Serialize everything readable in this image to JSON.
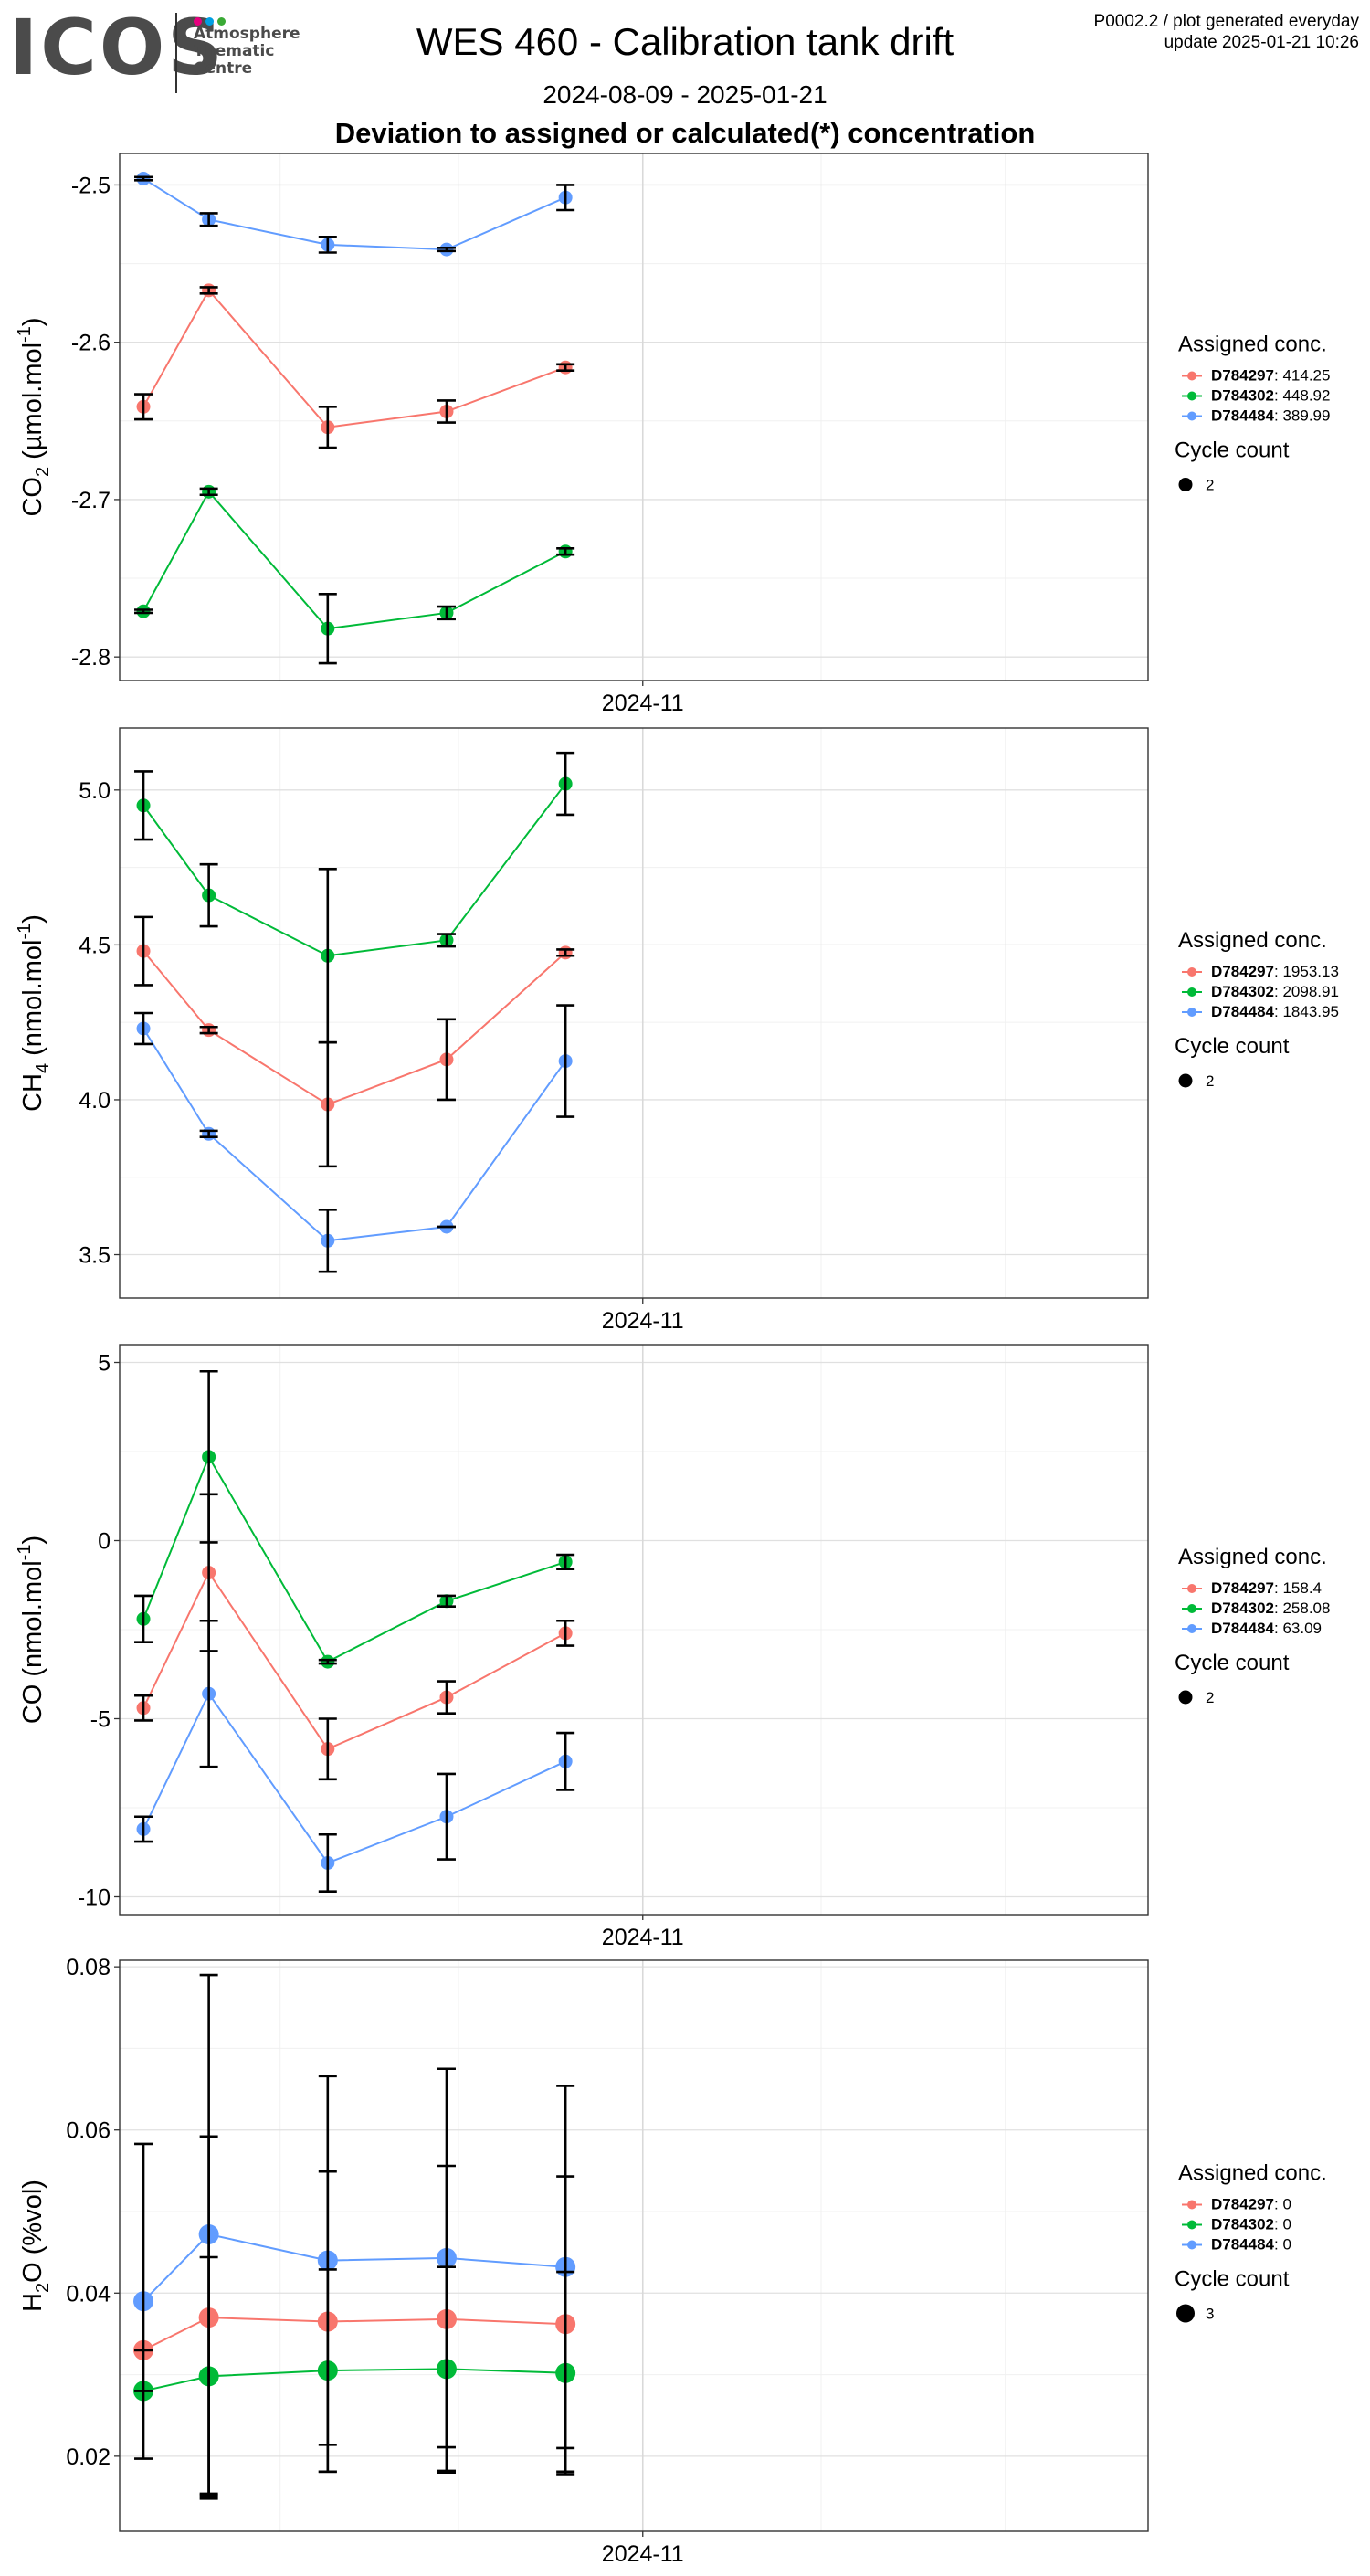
{
  "header": {
    "logo": "ICOS",
    "logo_sub": [
      "Atmosphere",
      "Thematic",
      "Centre"
    ],
    "title": "WES 460 - Calibration tank drift",
    "date_range": "2024-08-09 - 2025-01-21",
    "subtitle": "Deviation to assigned or calculated(*) concentration",
    "note_line1": "P0002.2 / plot generated everyday",
    "note_line2": "update  2025-01-21 10:26"
  },
  "colors": {
    "D784297": "#F8766D",
    "D784302": "#00BA38",
    "D784484": "#619CFF",
    "logo_dots": [
      "#e6007e",
      "#009fe3",
      "#3aaa35"
    ]
  },
  "chart_data": [
    {
      "type": "line",
      "ylabel": "CO2 (µmol.mol-1)",
      "ylabel_parts": {
        "base": "CO",
        "sub": "2",
        "rest": " (µmol.mol",
        "sup": "-1",
        "end": ")"
      },
      "x_tick_label": "2024-11",
      "yticks": [
        -2.5,
        -2.6,
        -2.7,
        -2.8
      ],
      "ytick_labels": [
        "-2.5",
        "-2.6",
        "-2.7",
        "-2.8"
      ],
      "ylim": [
        -2.815,
        -2.48
      ],
      "x": [
        "2024-08-09",
        "2024-08-20",
        "2024-09-09",
        "2024-09-29",
        "2024-10-19"
      ],
      "legend_title": "Assigned conc.",
      "cycle_title": "Cycle count",
      "cycle_label": "2",
      "series": [
        {
          "id": "D784297",
          "name": "D784297",
          "assigned": ": 414.25",
          "values": [
            -2.641,
            -2.567,
            -2.654,
            -2.644,
            -2.616
          ],
          "err": [
            0.008,
            0.002,
            0.013,
            0.007,
            0.002
          ]
        },
        {
          "id": "D784302",
          "name": "D784302",
          "assigned": ": 448.92",
          "values": [
            -2.771,
            -2.695,
            -2.782,
            -2.772,
            -2.733
          ],
          "err": [
            0.001,
            0.002,
            0.022,
            0.004,
            0.002
          ]
        },
        {
          "id": "D784484",
          "name": "D784484",
          "assigned": ": 389.99",
          "values": [
            -2.496,
            -2.522,
            -2.538,
            -2.541,
            -2.508
          ],
          "err": [
            0.001,
            0.004,
            0.005,
            0.001,
            0.008
          ]
        }
      ]
    },
    {
      "type": "line",
      "ylabel": "CH4 (nmol.mol-1)",
      "ylabel_parts": {
        "base": "CH",
        "sub": "4",
        "rest": " (nmol.mol",
        "sup": "-1",
        "end": ")"
      },
      "x_tick_label": "2024-11",
      "yticks": [
        5.0,
        4.5,
        4.0,
        3.5
      ],
      "ytick_labels": [
        "5.0",
        "4.5",
        "4.0",
        "3.5"
      ],
      "ylim": [
        3.36,
        5.2
      ],
      "x": [
        "2024-08-09",
        "2024-08-20",
        "2024-09-09",
        "2024-09-29",
        "2024-10-19"
      ],
      "legend_title": "Assigned conc.",
      "cycle_title": "Cycle count",
      "cycle_label": "2",
      "series": [
        {
          "id": "D784297",
          "name": "D784297",
          "assigned": ": 1953.13",
          "values": [
            4.48,
            4.225,
            3.985,
            4.13,
            4.475
          ],
          "err": [
            0.11,
            0.01,
            0.2,
            0.13,
            0.01
          ]
        },
        {
          "id": "D784302",
          "name": "D784302",
          "assigned": ": 2098.91",
          "values": [
            4.95,
            4.66,
            4.465,
            4.515,
            5.02
          ],
          "err": [
            0.11,
            0.1,
            0.28,
            0.02,
            0.1
          ]
        },
        {
          "id": "D784484",
          "name": "D784484",
          "assigned": ": 1843.95",
          "values": [
            4.23,
            3.89,
            3.545,
            3.59,
            4.125
          ],
          "err": [
            0.05,
            0.01,
            0.1,
            0.0,
            0.18
          ]
        }
      ]
    },
    {
      "type": "line",
      "ylabel": "CO (nmol.mol-1)",
      "ylabel_parts": {
        "base": "CO",
        "sub": "",
        "rest": " (nmol.mol",
        "sup": "-1",
        "end": ")"
      },
      "x_tick_label": "2024-11",
      "yticks": [
        5,
        0,
        -5,
        -10
      ],
      "ytick_labels": [
        "5",
        "0",
        "-5",
        "-10"
      ],
      "ylim": [
        -10.5,
        5.5
      ],
      "x": [
        "2024-08-09",
        "2024-08-20",
        "2024-09-09",
        "2024-09-29",
        "2024-10-19"
      ],
      "legend_title": "Assigned conc.",
      "cycle_title": "Cycle count",
      "cycle_label": "2",
      "series": [
        {
          "id": "D784297",
          "name": "D784297",
          "assigned": ": 158.4",
          "values": [
            -4.7,
            -0.9,
            -5.85,
            -4.4,
            -2.6
          ],
          "err": [
            0.35,
            2.2,
            0.85,
            0.45,
            0.35
          ]
        },
        {
          "id": "D784302",
          "name": "D784302",
          "assigned": ": 258.08",
          "values": [
            -2.2,
            2.35,
            -3.4,
            -1.7,
            -0.6
          ],
          "err": [
            0.65,
            2.4,
            0.05,
            0.15,
            0.2
          ]
        },
        {
          "id": "D784484",
          "name": "D784484",
          "assigned": ": 63.09",
          "values": [
            -8.1,
            -4.3,
            -9.05,
            -7.75,
            -6.2
          ],
          "err": [
            0.35,
            2.05,
            0.8,
            1.2,
            0.8
          ]
        }
      ]
    },
    {
      "type": "line",
      "ylabel": "H2O (%vol)",
      "ylabel_parts": {
        "base": "H",
        "sub": "2",
        "rest": "O (%vol)",
        "sup": "",
        "end": ""
      },
      "x_tick_label": "2024-11",
      "yticks": [
        0.08,
        0.06,
        0.04,
        0.02
      ],
      "ytick_labels": [
        "0.08",
        "0.06",
        "0.04",
        "0.02"
      ],
      "ylim": [
        0.0108,
        0.0808
      ],
      "x": [
        "2024-08-09",
        "2024-08-20",
        "2024-09-09",
        "2024-09-29",
        "2024-10-19"
      ],
      "legend_title": "Assigned conc.",
      "cycle_title": "Cycle count",
      "cycle_label": "3",
      "big_points": true,
      "series": [
        {
          "id": "D784297",
          "name": "D784297",
          "assigned": ": 0",
          "values": [
            0.033,
            0.037,
            0.0365,
            0.0368,
            0.0362
          ],
          "err": [
            0.0,
            0.0222,
            0.0184,
            0.0188,
            0.0181
          ]
        },
        {
          "id": "D784302",
          "name": "D784302",
          "assigned": ": 0",
          "values": [
            0.028,
            0.0298,
            0.0305,
            0.0307,
            0.0302
          ],
          "err": [
            0.0,
            0.0146,
            0.0124,
            0.0125,
            0.0124
          ]
        },
        {
          "id": "D784484",
          "name": "D784484",
          "assigned": ": 0",
          "values": [
            0.039,
            0.0472,
            0.044,
            0.0443,
            0.0432
          ],
          "err": [
            0.0193,
            0.0318,
            0.0226,
            0.0232,
            0.0222
          ]
        }
      ]
    }
  ]
}
